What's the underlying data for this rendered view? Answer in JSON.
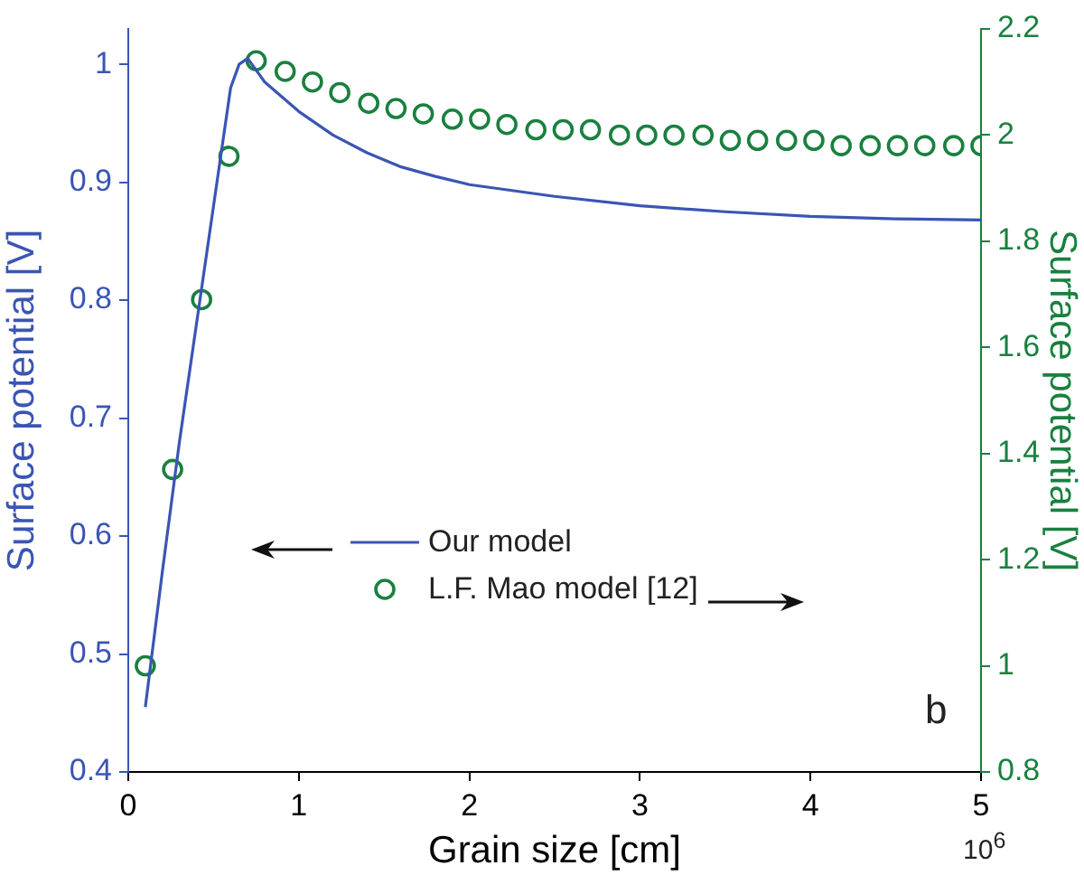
{
  "chart_data": {
    "type": "line",
    "xlabel": "Grain size [cm]",
    "ylabel": "Surface potential [V]",
    "y2label": "Surface potential [V]",
    "xlim": [
      0,
      5
    ],
    "xticks": [
      0,
      1,
      2,
      3,
      4,
      5
    ],
    "ylim": [
      0.4,
      1.03
    ],
    "yticks": [
      0.4,
      0.5,
      0.6,
      0.7,
      0.8,
      0.9,
      1
    ],
    "y2lim": [
      0.8,
      2.2
    ],
    "y2ticks": [
      0.8,
      1,
      1.2,
      1.4,
      1.6,
      1.8,
      2,
      2.2
    ],
    "grid": false,
    "legend": "center",
    "annotations": [
      "b",
      "10$^{6}$"
    ],
    "series": [
      {
        "name": "Our model",
        "color": "#3a55b4",
        "marker": "none",
        "x": [
          0.1,
          0.2,
          0.3,
          0.4,
          0.5,
          0.6,
          0.65,
          0.7,
          0.75,
          0.8,
          1,
          1.2,
          1.4,
          1.6,
          1.8,
          2,
          2.5,
          3,
          3.5,
          4,
          4.5,
          5
        ],
        "values": [
          0.455,
          0.57,
          0.68,
          0.78,
          0.88,
          0.98,
          1.0,
          1.005,
          0.995,
          0.985,
          0.96,
          0.94,
          0.925,
          0.913,
          0.905,
          0.898,
          0.888,
          0.88,
          0.875,
          0.871,
          0.869,
          0.868
        ]
      },
      {
        "name": "L.F. Mao model [12]",
        "type": "scatter",
        "axis": "y2",
        "color": "#1a8040",
        "marker": "circle",
        "x": [
          0.1,
          0.26,
          0.43,
          0.59,
          0.75,
          0.92,
          1.08,
          1.24,
          1.41,
          1.57,
          1.73,
          1.9,
          2.06,
          2.22,
          2.39,
          2.55,
          2.71,
          2.88,
          3.04,
          3.2,
          3.37,
          3.53,
          3.69,
          3.86,
          4.02,
          4.18,
          4.35,
          4.51,
          4.67,
          4.84,
          5.0
        ],
        "values": [
          1.0,
          1.37,
          1.69,
          1.96,
          2.14,
          2.12,
          2.1,
          2.08,
          2.06,
          2.05,
          2.04,
          2.03,
          2.03,
          2.02,
          2.01,
          2.01,
          2.01,
          2.0,
          2.0,
          2.0,
          2.0,
          1.99,
          1.99,
          1.99,
          1.99,
          1.98,
          1.98,
          1.98,
          1.98,
          1.98,
          1.98
        ]
      }
    ]
  }
}
